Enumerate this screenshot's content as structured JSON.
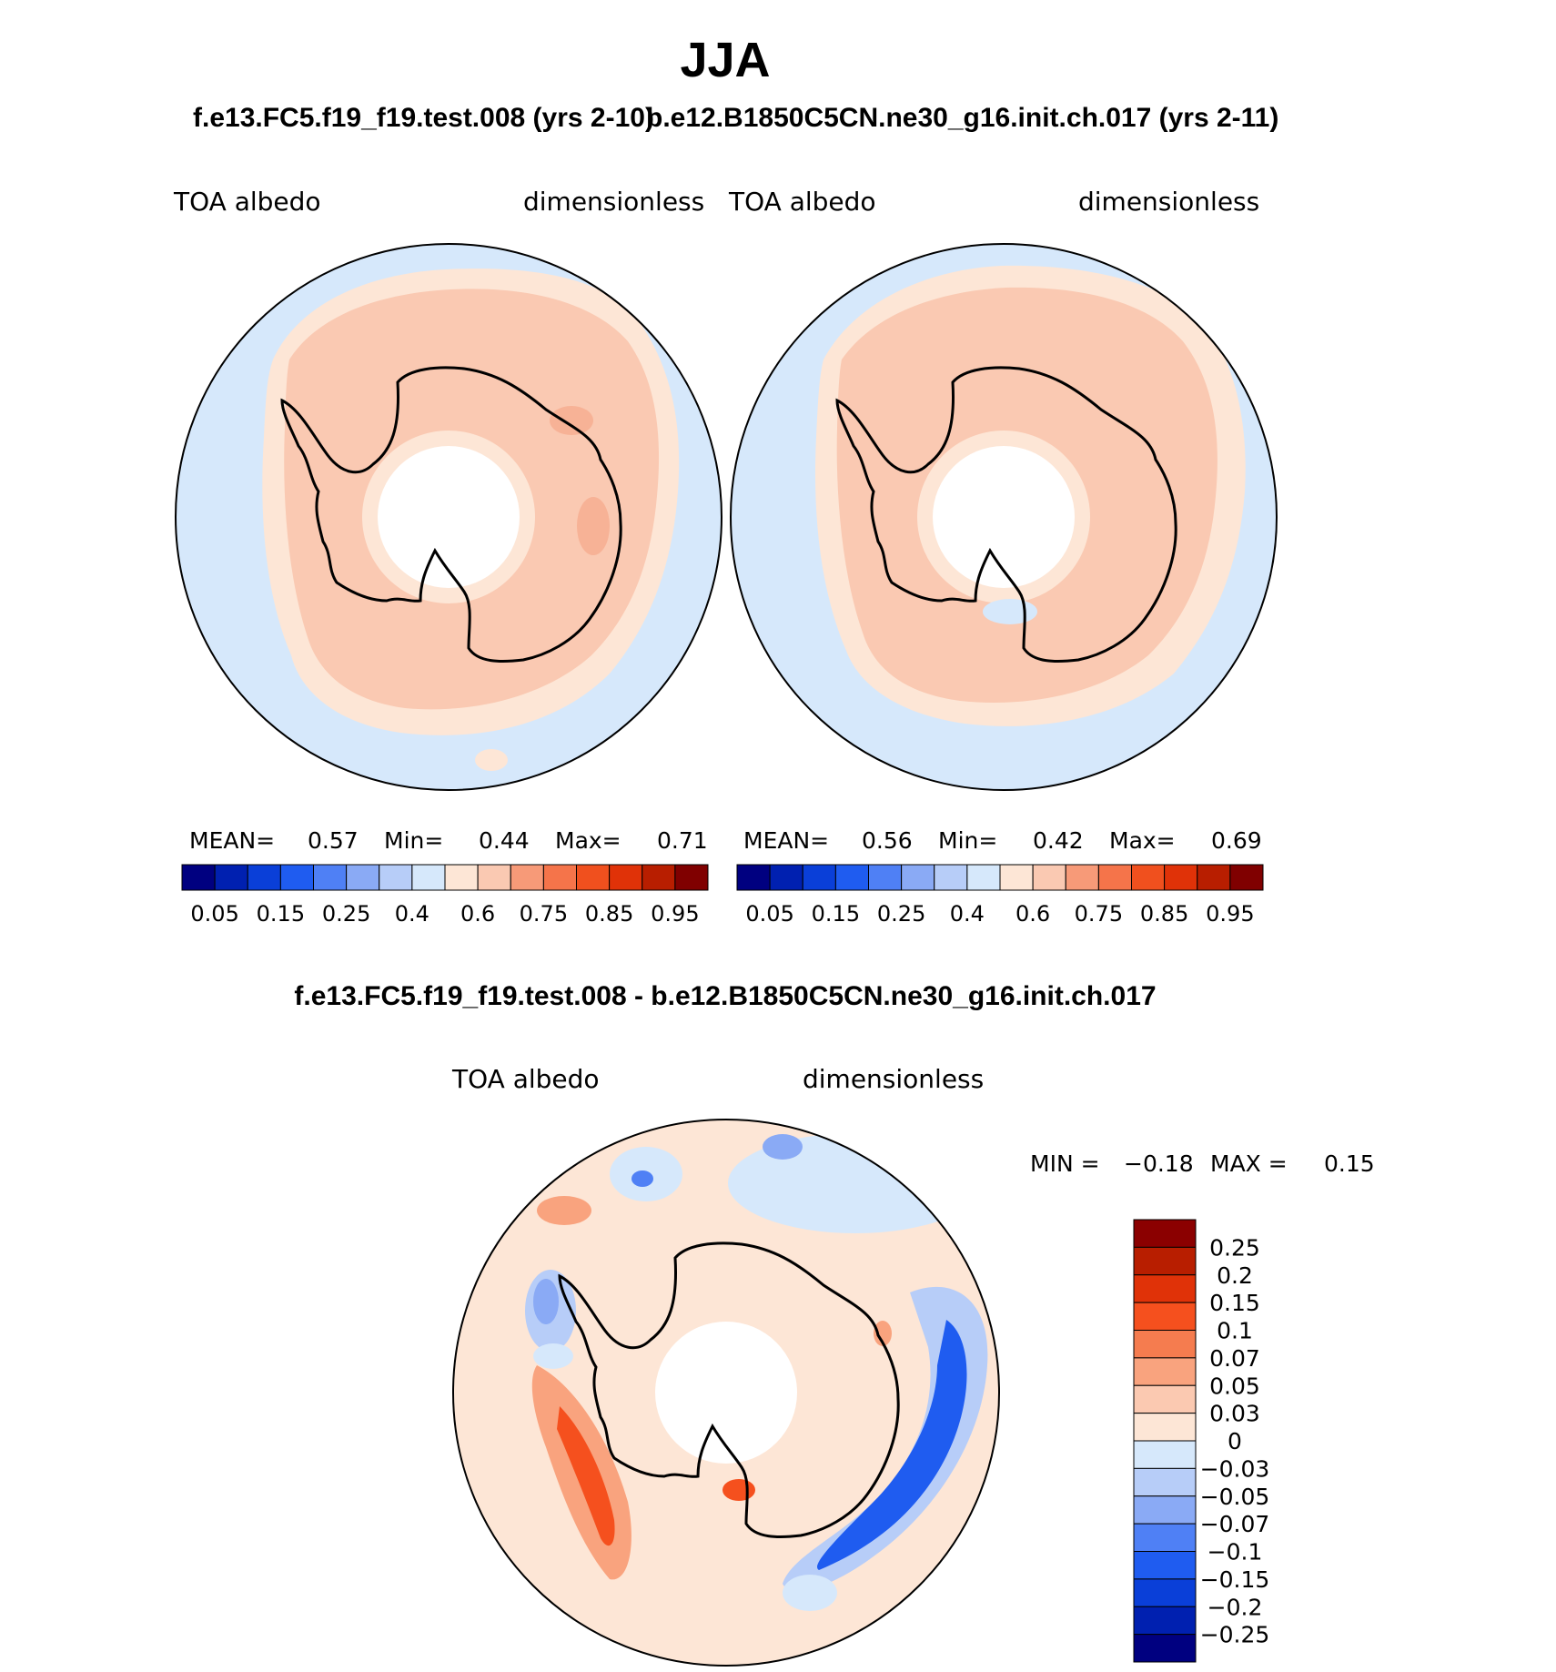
{
  "title": "JJA",
  "colors": {
    "circle_stroke": "#000000",
    "coast": "#000000",
    "light_blue": "#d6e8fb",
    "peach": "#fde6d6",
    "salmon": "#fac9b2",
    "orange": "#f79a78",
    "white": "#ffffff"
  },
  "panels": [
    {
      "case_title": "f.e13.FC5.f19_f19.test.008 (yrs 2-10)",
      "variable": "TOA  albedo",
      "units": "dimensionless",
      "stats": {
        "mean_label": "MEAN=",
        "mean": "0.57",
        "min_label": "Min=",
        "min": "0.44",
        "max_label": "Max=",
        "max": "0.71"
      },
      "colorbar_ticks": [
        "0.05",
        "0.15",
        "0.25",
        "0.4",
        "0.6",
        "0.75",
        "0.85",
        "0.95"
      ]
    },
    {
      "case_title": "b.e12.B1850C5CN.ne30_g16.init.ch.017 (yrs 2-11)",
      "variable": "TOA  albedo",
      "units": "dimensionless",
      "stats": {
        "mean_label": "MEAN=",
        "mean": "0.56",
        "min_label": "Min=",
        "min": "0.42",
        "max_label": "Max=",
        "max": "0.69"
      },
      "colorbar_ticks": [
        "0.05",
        "0.15",
        "0.25",
        "0.4",
        "0.6",
        "0.75",
        "0.85",
        "0.95"
      ]
    }
  ],
  "abs_colors": [
    "#000080",
    "#0020b0",
    "#0a3fd8",
    "#1f5cf0",
    "#4f80f5",
    "#8aaaf5",
    "#b7cdf8",
    "#d6e8fb",
    "#fde6d6",
    "#fac9b2",
    "#f79a78",
    "#f5744a",
    "#f0501e",
    "#e03208",
    "#b81e00",
    "#800000"
  ],
  "diff": {
    "title": "f.e13.FC5.f19_f19.test.008 - b.e12.B1850C5CN.ne30_g16.init.ch.017",
    "variable": "TOA  albedo",
    "units": "dimensionless",
    "min_label": "MIN =",
    "min": "−0.18",
    "max_label": "MAX =",
    "max": "0.15",
    "colorbar_labels": [
      "0.25",
      "0.2",
      "0.15",
      "0.1",
      "0.07",
      "0.05",
      "0.03",
      "0",
      "−0.03",
      "−0.05",
      "−0.07",
      "−0.1",
      "−0.15",
      "−0.2",
      "−0.25"
    ],
    "colorbar_colors": [
      "#8b0000",
      "#b81e00",
      "#e03208",
      "#f5501e",
      "#f57c4f",
      "#f9a37e",
      "#fbc9b1",
      "#fde6d6",
      "#d6e8fb",
      "#b7cdf8",
      "#8aaaf5",
      "#4f80f5",
      "#1f5cf0",
      "#0a3fd8",
      "#0020b0",
      "#000080"
    ]
  }
}
